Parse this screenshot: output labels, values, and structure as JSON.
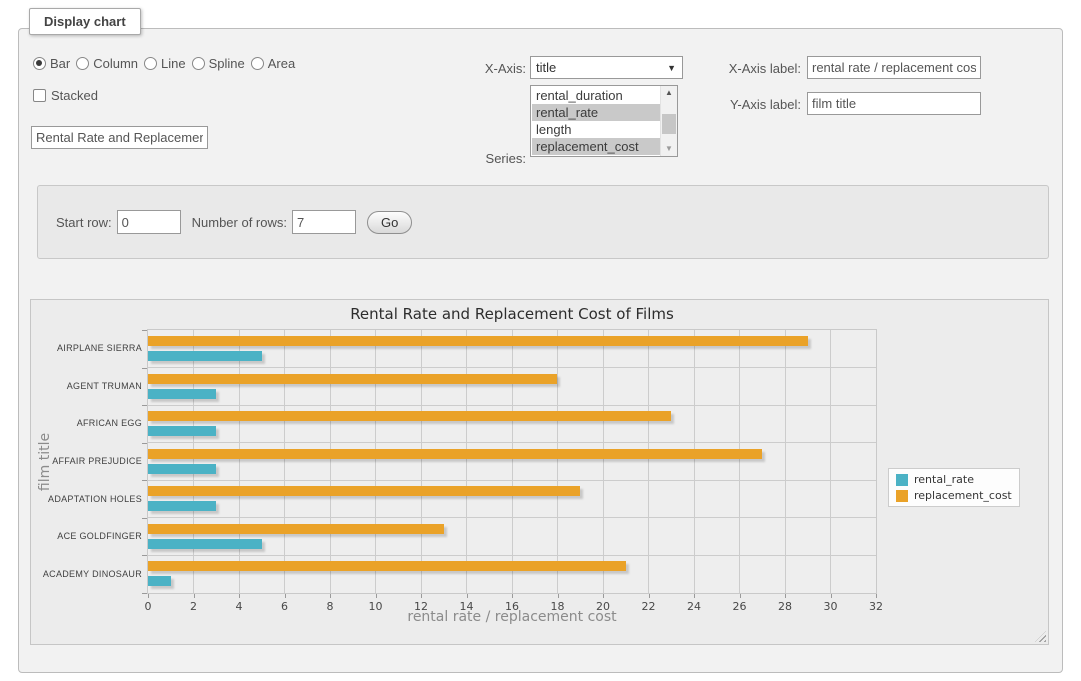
{
  "panel_title": "Display chart",
  "icons": {
    "select_arrow": "▼",
    "scroll_up": "▲",
    "scroll_down": "▼"
  },
  "chart_types": {
    "options": [
      {
        "label": "Bar",
        "selected": true
      },
      {
        "label": "Column",
        "selected": false
      },
      {
        "label": "Line",
        "selected": false
      },
      {
        "label": "Spline",
        "selected": false
      },
      {
        "label": "Area",
        "selected": false
      }
    ]
  },
  "stacked": {
    "label": "Stacked",
    "checked": false
  },
  "chart_title_input": {
    "value": "Rental Rate and Replacement Cost of Films"
  },
  "x_axis_select": {
    "label": "X-Axis:",
    "value": "title"
  },
  "series_select": {
    "label": "Series:",
    "options": [
      {
        "label": "rental_duration",
        "selected": false
      },
      {
        "label": "rental_rate",
        "selected": true
      },
      {
        "label": "length",
        "selected": false
      },
      {
        "label": "replacement_cost",
        "selected": true
      }
    ]
  },
  "x_axis_label_field": {
    "label": "X-Axis label:",
    "value": "rental rate / replacement cost"
  },
  "y_axis_label_field": {
    "label": "Y-Axis label:",
    "value": "film title"
  },
  "row_controls": {
    "start_row_label": "Start row:",
    "start_row_value": "0",
    "rows_label": "Number of rows:",
    "rows_value": "7",
    "go_label": "Go"
  },
  "chart_data": {
    "type": "bar",
    "orientation": "horizontal",
    "title": "Rental Rate and Replacement Cost of Films",
    "xlabel": "rental rate / replacement cost",
    "ylabel": "film title",
    "categories": [
      "AIRPLANE SIERRA",
      "AGENT TRUMAN",
      "AFRICAN EGG",
      "AFFAIR PREJUDICE",
      "ADAPTATION HOLES",
      "ACE GOLDFINGER",
      "ACADEMY DINOSAUR"
    ],
    "series": [
      {
        "name": "rental_rate",
        "color": "#4bb2c5",
        "values": [
          4.99,
          2.99,
          2.99,
          2.99,
          2.99,
          4.99,
          0.99
        ]
      },
      {
        "name": "replacement_cost",
        "color": "#EAA228",
        "values": [
          28.99,
          17.99,
          22.99,
          26.99,
          18.99,
          12.99,
          20.99
        ]
      }
    ],
    "xlim": [
      0,
      32
    ],
    "xticks": [
      0,
      2,
      4,
      6,
      8,
      10,
      12,
      14,
      16,
      18,
      20,
      22,
      24,
      26,
      28,
      30,
      32
    ],
    "grid": true,
    "legend_position": "right"
  }
}
